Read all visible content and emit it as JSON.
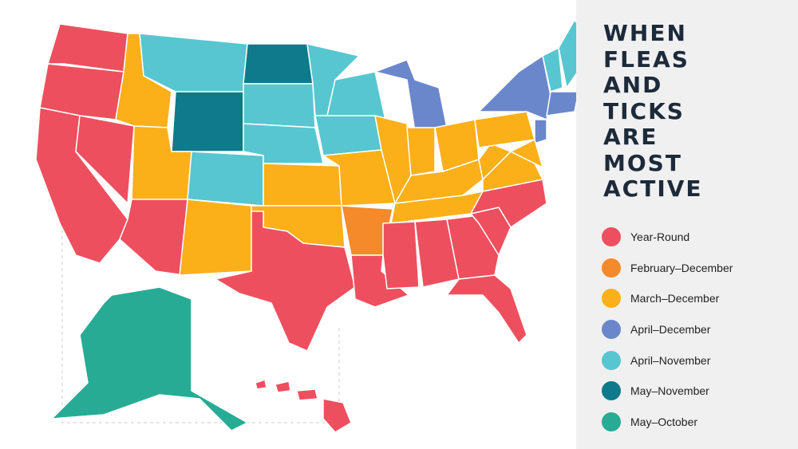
{
  "panel": {
    "title_lines": [
      "WHEN",
      "FLEAS",
      "AND",
      "TICKS",
      "ARE",
      "MOST",
      "ACTIVE"
    ]
  },
  "legend": {
    "items": [
      {
        "label": "Year-Round",
        "color": "#ee4f5e"
      },
      {
        "label": "February–December",
        "color": "#f58a2a"
      },
      {
        "label": "March–December",
        "color": "#fbb01a"
      },
      {
        "label": "April–December",
        "color": "#6b87cc"
      },
      {
        "label": "April–November",
        "color": "#58c6d0"
      },
      {
        "label": "May–November",
        "color": "#0e7a8c"
      },
      {
        "label": "May–October",
        "color": "#28ab94"
      }
    ]
  }
}
